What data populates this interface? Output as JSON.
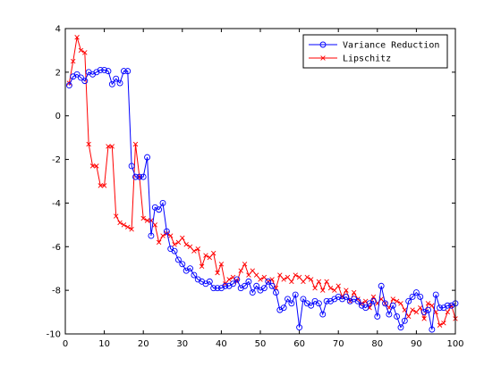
{
  "chart_data": {
    "type": "line",
    "title": "",
    "xlabel": "",
    "ylabel": "",
    "xlim": [
      0,
      100
    ],
    "ylim": [
      -10,
      4
    ],
    "xticks": [
      0,
      10,
      20,
      30,
      40,
      50,
      60,
      70,
      80,
      90,
      100
    ],
    "yticks": [
      4,
      2,
      0,
      -2,
      -4,
      -6,
      -8,
      -10
    ],
    "grid": false,
    "legend_position": "top-right",
    "series": [
      {
        "name": "Variance Reduction",
        "color": "#0000ff",
        "marker": "circle",
        "x": [
          1,
          2,
          3,
          4,
          5,
          6,
          7,
          8,
          9,
          10,
          11,
          12,
          13,
          14,
          15,
          16,
          17,
          18,
          19,
          20,
          21,
          22,
          23,
          24,
          25,
          26,
          27,
          28,
          29,
          30,
          31,
          32,
          33,
          34,
          35,
          36,
          37,
          38,
          39,
          40,
          41,
          42,
          43,
          44,
          45,
          46,
          47,
          48,
          49,
          50,
          51,
          52,
          53,
          54,
          55,
          56,
          57,
          58,
          59,
          60,
          61,
          62,
          63,
          64,
          65,
          66,
          67,
          68,
          69,
          70,
          71,
          72,
          73,
          74,
          75,
          76,
          77,
          78,
          79,
          80,
          81,
          82,
          83,
          84,
          85,
          86,
          87,
          88,
          89,
          90,
          91,
          92,
          93,
          94,
          95,
          96,
          97,
          98,
          99,
          100
        ],
        "y": [
          1.4,
          1.8,
          1.9,
          1.75,
          1.6,
          2.0,
          1.9,
          2.0,
          2.1,
          2.1,
          2.05,
          1.45,
          1.7,
          1.5,
          2.05,
          2.05,
          -2.3,
          -2.8,
          -2.8,
          -2.8,
          -1.9,
          -5.5,
          -4.2,
          -4.3,
          -4.0,
          -5.3,
          -6.1,
          -6.2,
          -6.6,
          -6.8,
          -7.1,
          -7.0,
          -7.3,
          -7.5,
          -7.6,
          -7.7,
          -7.6,
          -7.9,
          -7.9,
          -7.9,
          -7.8,
          -7.8,
          -7.7,
          -7.5,
          -7.9,
          -7.8,
          -7.6,
          -8.1,
          -7.8,
          -8.0,
          -7.9,
          -7.6,
          -7.8,
          -8.1,
          -8.9,
          -8.8,
          -8.4,
          -8.6,
          -8.2,
          -9.7,
          -8.4,
          -8.6,
          -8.7,
          -8.5,
          -8.6,
          -9.1,
          -8.5,
          -8.5,
          -8.4,
          -8.3,
          -8.4,
          -8.3,
          -8.5,
          -8.4,
          -8.5,
          -8.7,
          -8.8,
          -8.6,
          -8.5,
          -9.2,
          -7.8,
          -8.6,
          -9.1,
          -8.7,
          -9.2,
          -9.7,
          -9.4,
          -8.5,
          -8.3,
          -8.1,
          -8.3,
          -9.0,
          -8.9,
          -9.8,
          -8.2,
          -8.8,
          -8.8,
          -8.7,
          -8.7,
          -8.6
        ]
      },
      {
        "name": "Lipschitz",
        "color": "#ff0000",
        "marker": "x",
        "x": [
          1,
          2,
          3,
          4,
          5,
          6,
          7,
          8,
          9,
          10,
          11,
          12,
          13,
          14,
          15,
          16,
          17,
          18,
          19,
          20,
          21,
          22,
          23,
          24,
          25,
          26,
          27,
          28,
          29,
          30,
          31,
          32,
          33,
          34,
          35,
          36,
          37,
          38,
          39,
          40,
          41,
          42,
          43,
          44,
          45,
          46,
          47,
          48,
          49,
          50,
          51,
          52,
          53,
          54,
          55,
          56,
          57,
          58,
          59,
          60,
          61,
          62,
          63,
          64,
          65,
          66,
          67,
          68,
          69,
          70,
          71,
          72,
          73,
          74,
          75,
          76,
          77,
          78,
          79,
          80,
          81,
          82,
          83,
          84,
          85,
          86,
          87,
          88,
          89,
          90,
          91,
          92,
          93,
          94,
          95,
          96,
          97,
          98,
          99,
          100
        ],
        "y": [
          1.5,
          2.5,
          3.6,
          3.0,
          2.9,
          -1.3,
          -2.3,
          -2.3,
          -3.2,
          -3.2,
          -1.4,
          -1.4,
          -4.6,
          -4.9,
          -5.0,
          -5.1,
          -5.2,
          -1.3,
          -2.8,
          -4.7,
          -4.8,
          -4.8,
          -5.0,
          -5.8,
          -5.5,
          -5.4,
          -5.5,
          -5.9,
          -5.8,
          -5.6,
          -5.9,
          -6.0,
          -6.2,
          -6.1,
          -6.9,
          -6.4,
          -6.5,
          -6.3,
          -7.2,
          -6.8,
          -7.7,
          -7.5,
          -7.4,
          -7.6,
          -7.1,
          -6.8,
          -7.3,
          -7.1,
          -7.3,
          -7.5,
          -7.4,
          -7.6,
          -7.5,
          -7.9,
          -7.3,
          -7.5,
          -7.4,
          -7.6,
          -7.3,
          -7.4,
          -7.6,
          -7.4,
          -7.5,
          -7.9,
          -7.6,
          -8.0,
          -7.6,
          -7.9,
          -8.0,
          -7.8,
          -8.3,
          -8.0,
          -8.5,
          -8.1,
          -8.4,
          -8.6,
          -8.5,
          -8.8,
          -8.3,
          -8.6,
          -8.4,
          -8.6,
          -8.8,
          -8.4,
          -8.5,
          -8.6,
          -8.9,
          -9.2,
          -8.9,
          -9.0,
          -8.8,
          -9.3,
          -8.6,
          -8.7,
          -9.0,
          -9.6,
          -9.5,
          -9.0,
          -8.7,
          -9.3
        ]
      }
    ]
  }
}
